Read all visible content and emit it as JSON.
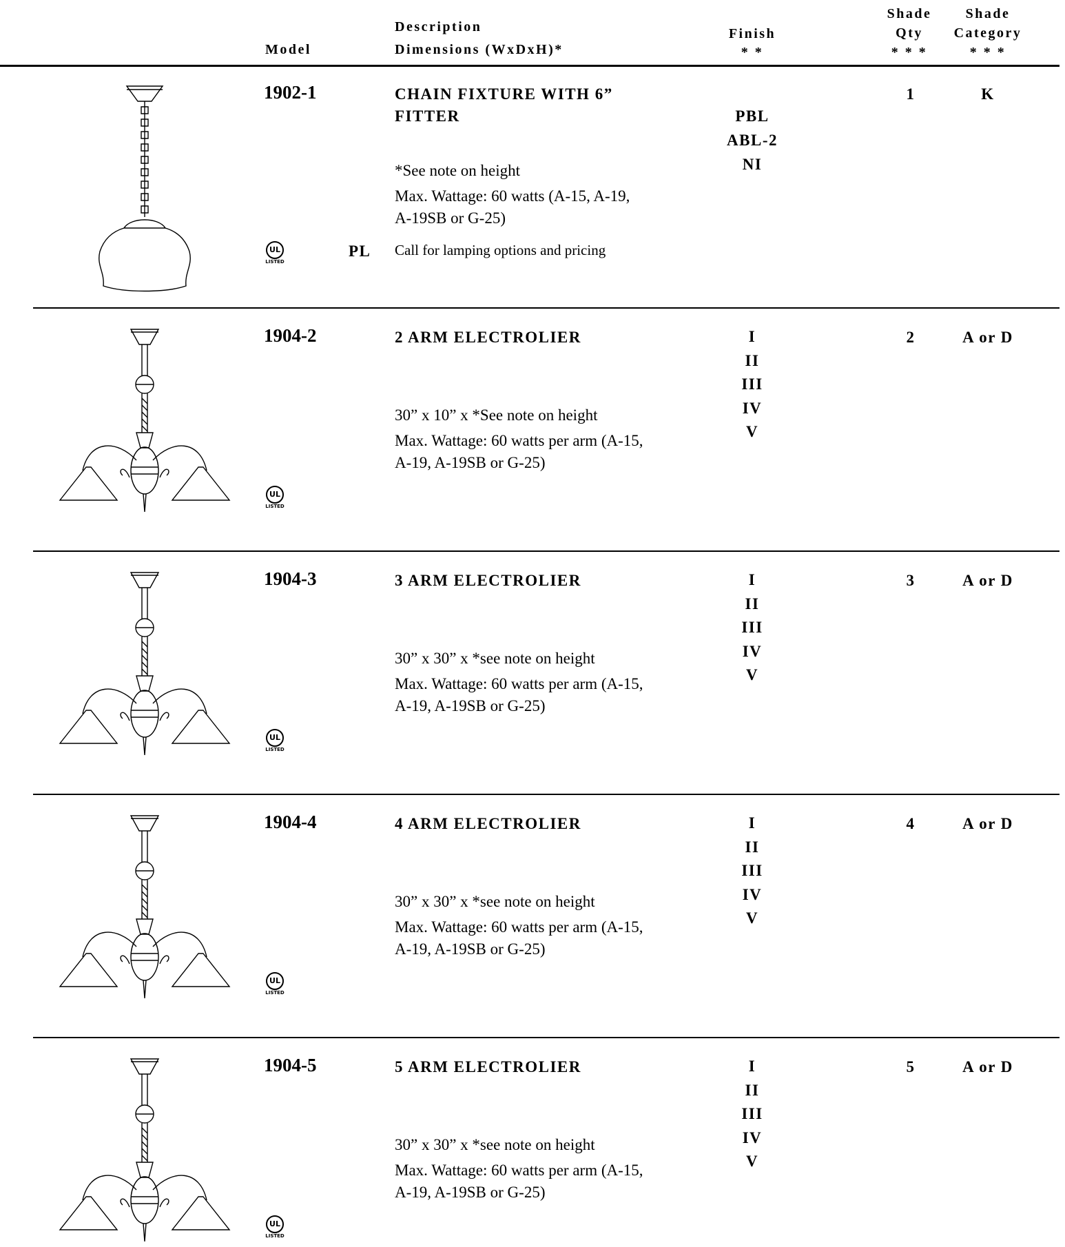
{
  "header": {
    "model": "Model",
    "description": "Description",
    "dimensions": "Dimensions   (WxDxH)*",
    "finish": "Finish",
    "finish_note": "* *",
    "shade_qty": [
      "Shade",
      "Qty",
      "* * *"
    ],
    "shade_category": [
      "Shade",
      "Category",
      "* * *"
    ]
  },
  "ul_logo": {
    "mark": "UL",
    "caption": "LISTED"
  },
  "rows": [
    {
      "model": "1902-1",
      "title": [
        "CHAIN FIXTURE WITH 6”",
        "FITTER"
      ],
      "details": [
        "*See note on height",
        "Max. Wattage: 60 watts (A-15, A-19,",
        "A-19SB or G-25)"
      ],
      "code": "PL",
      "lamping": "Call for lamping options and pricing",
      "finish": [
        "PBL",
        "ABL-2",
        "NI"
      ],
      "qty": 1,
      "category": "K"
    },
    {
      "model": "1904-2",
      "title": [
        "2 ARM ELECTROLIER"
      ],
      "details": [
        "30” x 10” x *See note on height",
        "Max. Wattage: 60 watts per arm (A-15,",
        "A-19, A-19SB or G-25)"
      ],
      "finish": [
        "I",
        "II",
        "III",
        "IV",
        "V"
      ],
      "qty": 2,
      "category": "A or D"
    },
    {
      "model": "1904-3",
      "title": [
        "3 ARM ELECTROLIER"
      ],
      "details": [
        "30” x 30” x *see note on height",
        "Max. Wattage: 60 watts per arm (A-15,",
        "A-19, A-19SB or G-25)"
      ],
      "finish": [
        "I",
        "II",
        "III",
        "IV",
        "V"
      ],
      "qty": 3,
      "category": "A or D"
    },
    {
      "model": "1904-4",
      "title": [
        "4 ARM ELECTROLIER"
      ],
      "details": [
        "30” x 30” x *see note on height",
        "Max. Wattage: 60 watts per arm (A-15,",
        "A-19, A-19SB or G-25)"
      ],
      "finish": [
        "I",
        "II",
        "III",
        "IV",
        "V"
      ],
      "qty": 4,
      "category": "A or D"
    },
    {
      "model": "1904-5",
      "title": [
        "5 ARM ELECTROLIER"
      ],
      "details": [
        "30” x 30” x *see note on height",
        "Max. Wattage: 60 watts per arm (A-15,",
        "A-19, A-19SB or G-25)"
      ],
      "finish": [
        "I",
        "II",
        "III",
        "IV",
        "V"
      ],
      "qty": 5,
      "category": "A or D"
    }
  ]
}
